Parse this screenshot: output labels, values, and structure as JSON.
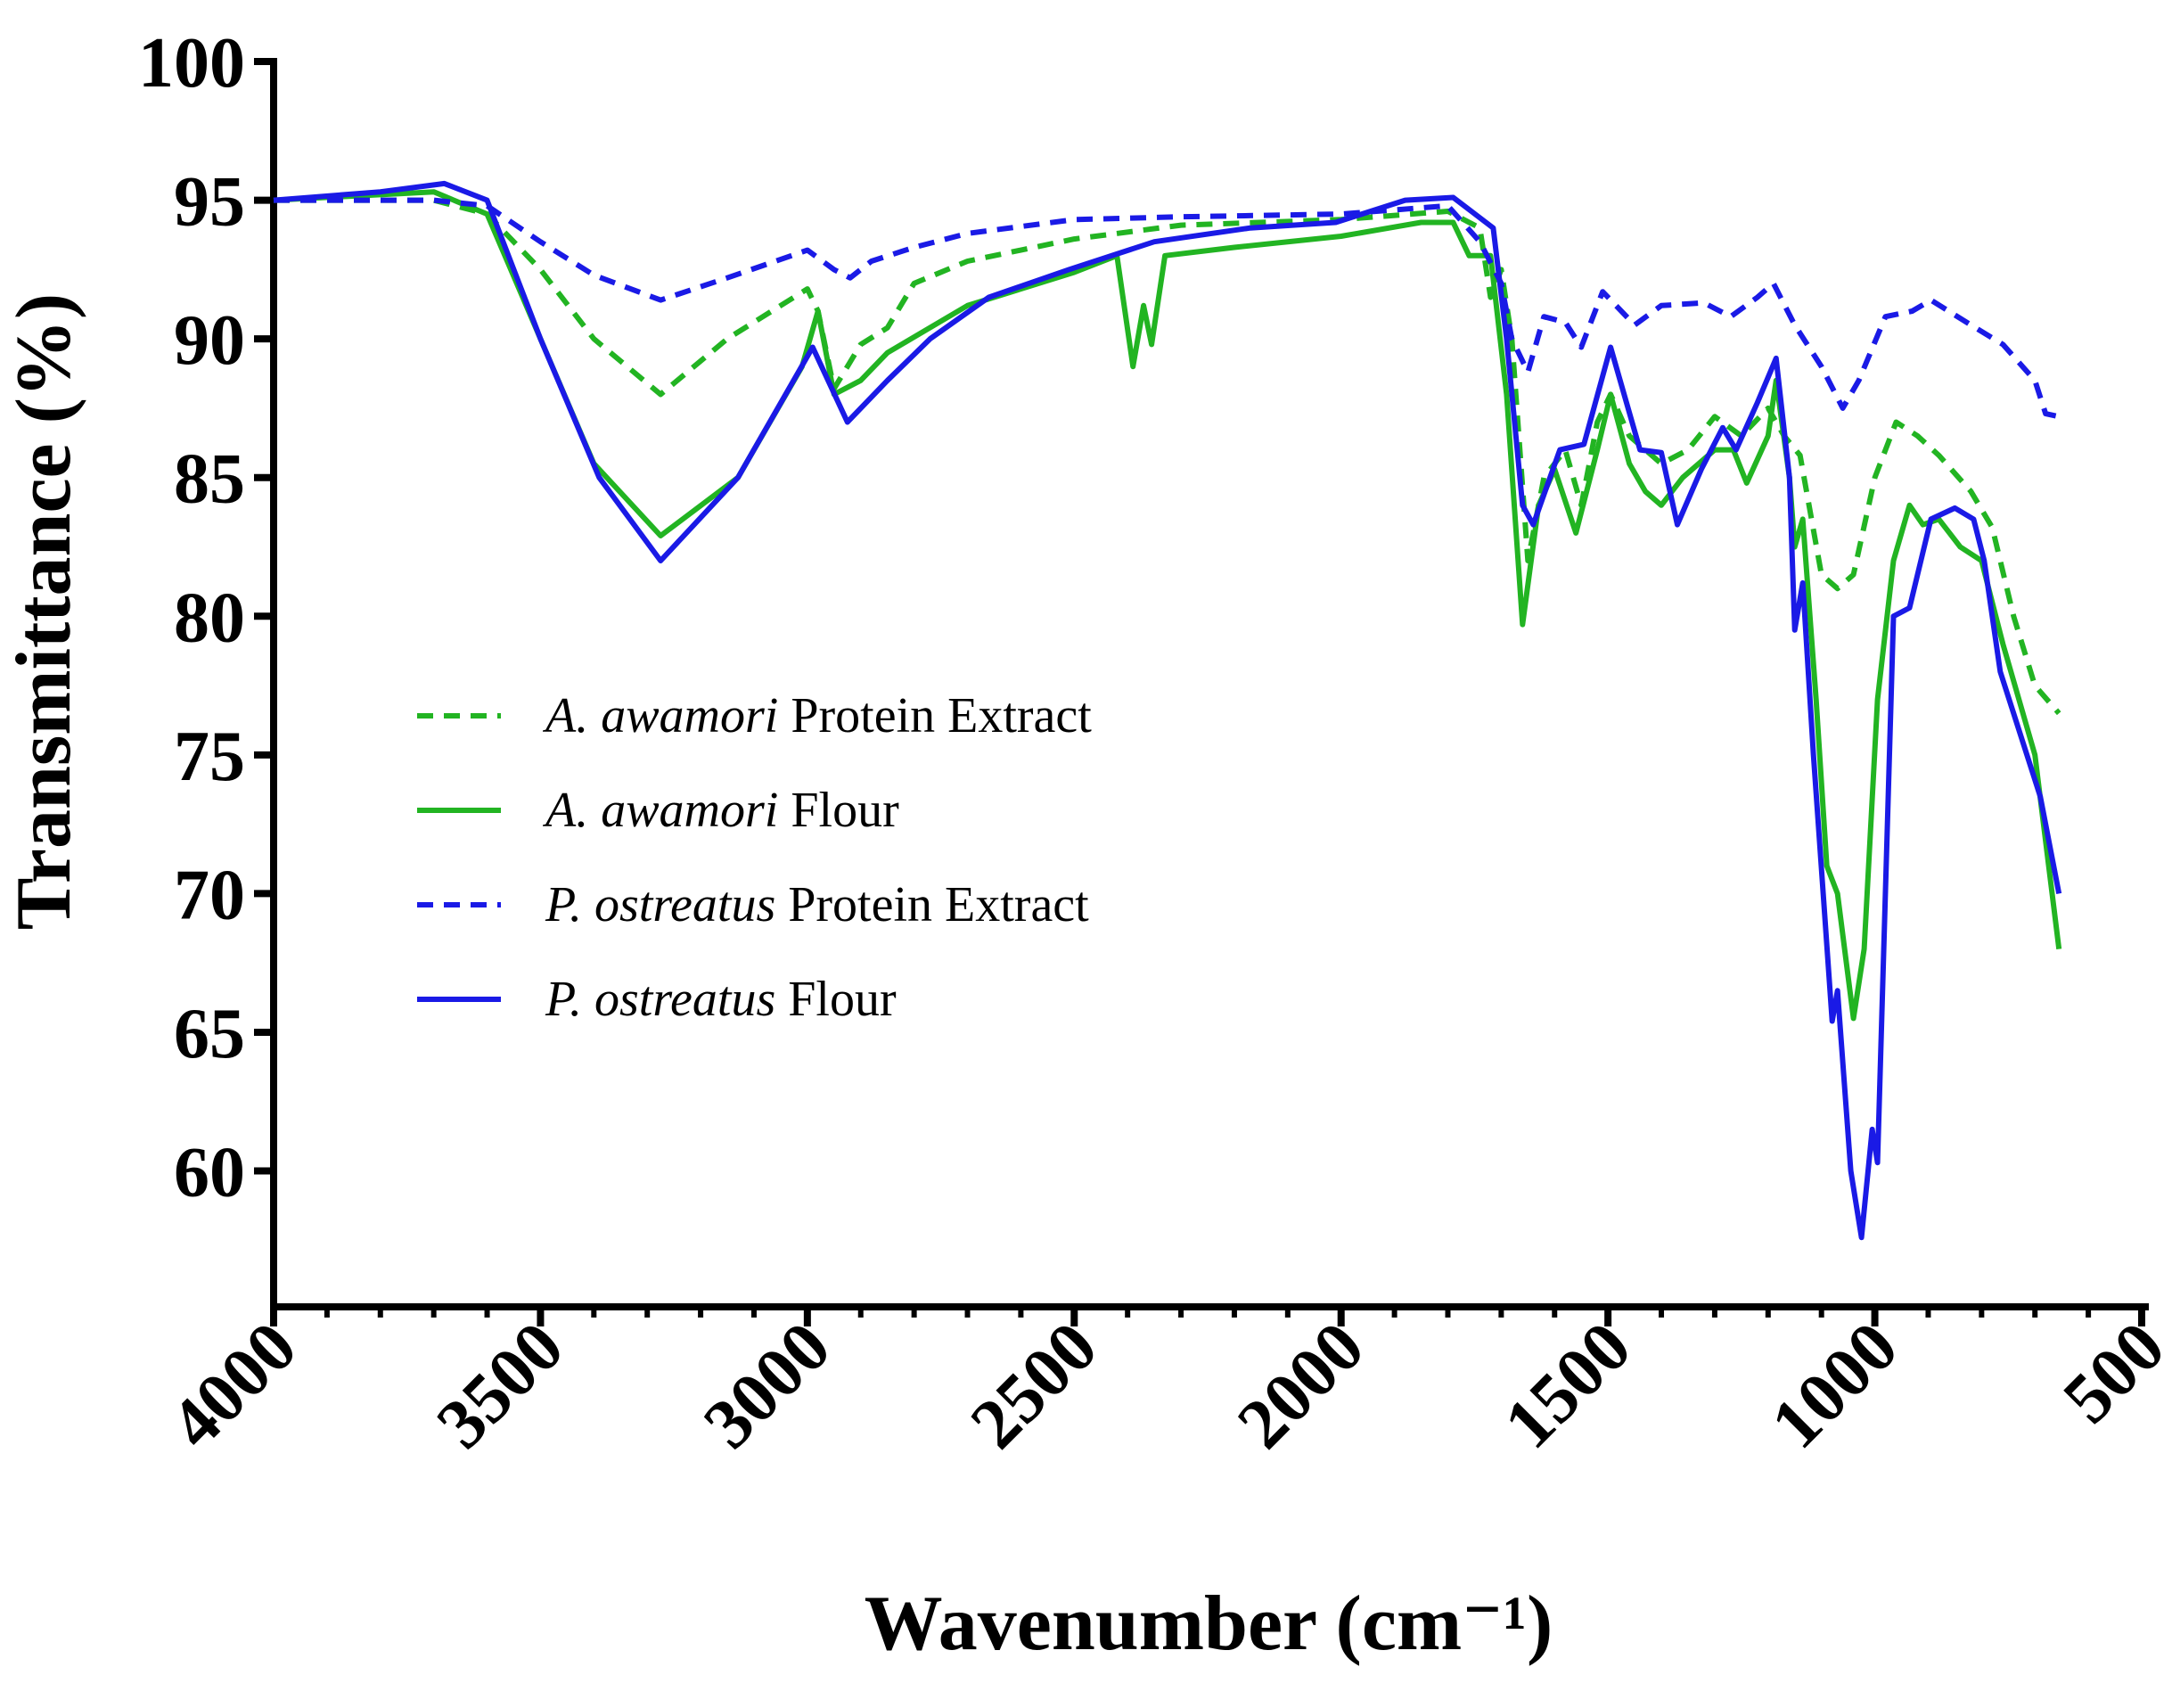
{
  "chart_data": {
    "type": "line",
    "xlabel": "Wavenumber (cm⁻¹)",
    "ylabel": "Transmittance (%)",
    "xlim": [
      4000,
      500
    ],
    "xticks": [
      4000,
      3500,
      3000,
      2500,
      2000,
      1500,
      1000,
      500
    ],
    "xminorticks": [
      4000,
      3900,
      3800,
      3700,
      3600,
      3500,
      3400,
      3300,
      3200,
      3100,
      3000,
      2900,
      2800,
      2700,
      2600,
      2500,
      2400,
      2300,
      2200,
      2100,
      2000,
      1900,
      1800,
      1700,
      1600,
      1500,
      1400,
      1300,
      1200,
      1100,
      1000,
      900,
      800,
      700,
      600,
      500
    ],
    "ylim": [
      55.1,
      100
    ],
    "yticks": [
      60,
      65,
      70,
      75,
      80,
      85,
      90,
      95,
      100
    ],
    "legend": "center-left",
    "series": [
      {
        "name": "A. awamori Protein Extract",
        "color": "#22b422",
        "dash": true,
        "x": [
          4000,
          3700,
          3600,
          3500,
          3400,
          3275,
          3150,
          3000,
          2980,
          2950,
          2900,
          2850,
          2800,
          2700,
          2500,
          2300,
          2000,
          1800,
          1740,
          1720,
          1700,
          1680,
          1650,
          1620,
          1580,
          1550,
          1520,
          1495,
          1460,
          1400,
          1350,
          1300,
          1250,
          1200,
          1170,
          1140,
          1100,
          1070,
          1040,
          1000,
          960,
          920,
          880,
          820,
          780,
          740,
          700,
          655
        ],
        "values": [
          95,
          95,
          94.5,
          92.5,
          90,
          88,
          90,
          91.8,
          91,
          88.2,
          89.8,
          90.4,
          92,
          92.8,
          93.6,
          94.1,
          94.3,
          94.6,
          94,
          91.5,
          92.5,
          90,
          82,
          85,
          86,
          84,
          87,
          88,
          86.5,
          85.5,
          86,
          87.2,
          86.5,
          87.5,
          86.5,
          85.8,
          81.5,
          81,
          81.5,
          85,
          87,
          86.5,
          85.8,
          84.5,
          83.2,
          80,
          77.5,
          76.5
        ]
      },
      {
        "name": "A. awamori Flour",
        "color": "#22b422",
        "dash": false,
        "x": [
          4000,
          3700,
          3600,
          3500,
          3400,
          3275,
          3130,
          3010,
          2980,
          2950,
          2900,
          2850,
          2700,
          2500,
          2420,
          2390,
          2370,
          2355,
          2330,
          2200,
          2000,
          1850,
          1790,
          1760,
          1720,
          1690,
          1660,
          1630,
          1600,
          1560,
          1520,
          1495,
          1460,
          1430,
          1400,
          1360,
          1300,
          1265,
          1240,
          1200,
          1185,
          1160,
          1150,
          1135,
          1110,
          1090,
          1070,
          1040,
          1020,
          995,
          965,
          935,
          910,
          880,
          840,
          800,
          760,
          700,
          655
        ],
        "values": [
          95,
          95.3,
          94.5,
          90,
          85.5,
          82.9,
          85,
          89,
          91,
          88,
          88.5,
          89.5,
          91.2,
          92.4,
          93,
          89,
          91.2,
          89.8,
          93,
          93.3,
          93.7,
          94.2,
          94.2,
          93,
          93,
          88,
          79.7,
          84,
          85.3,
          83,
          86,
          88,
          85.5,
          84.5,
          84,
          85,
          86,
          86,
          84.8,
          86.5,
          88.5,
          85,
          82.5,
          83.5,
          77,
          71,
          70,
          65.5,
          68,
          77,
          82,
          84,
          83.3,
          83.5,
          82.5,
          82,
          79,
          75,
          68
        ]
      },
      {
        "name": "P. ostreatus Protein Extract",
        "color": "#1a1ae6",
        "dash": true,
        "x": [
          4000,
          3700,
          3600,
          3500,
          3400,
          3275,
          3150,
          3000,
          2950,
          2920,
          2880,
          2800,
          2700,
          2500,
          2300,
          2000,
          1800,
          1740,
          1700,
          1680,
          1650,
          1620,
          1580,
          1550,
          1510,
          1450,
          1400,
          1320,
          1270,
          1220,
          1190,
          1150,
          1100,
          1060,
          1030,
          980,
          930,
          895,
          820,
          760,
          700,
          680,
          655
        ],
        "values": [
          95,
          95,
          94.8,
          93.5,
          92.3,
          91.4,
          92.2,
          93.2,
          92.5,
          92.2,
          92.8,
          93.3,
          93.8,
          94.3,
          94.4,
          94.5,
          94.8,
          93.5,
          92,
          90,
          88.8,
          90.8,
          90.6,
          89.7,
          91.7,
          90.5,
          91.2,
          91.3,
          90.8,
          91.5,
          92,
          90.5,
          89,
          87.5,
          88.5,
          90.8,
          91,
          91.4,
          90.5,
          89.8,
          88.5,
          87.3,
          87.2
        ]
      },
      {
        "name": "P. ostreatus Flour",
        "color": "#1a1ae6",
        "dash": false,
        "x": [
          4000,
          3800,
          3680,
          3600,
          3500,
          3390,
          3275,
          3130,
          2990,
          2925,
          2850,
          2770,
          2660,
          2510,
          2350,
          2170,
          2010,
          1880,
          1790,
          1715,
          1690,
          1660,
          1640,
          1590,
          1545,
          1495,
          1440,
          1400,
          1370,
          1325,
          1285,
          1260,
          1220,
          1185,
          1160,
          1150,
          1135,
          1115,
          1080,
          1070,
          1045,
          1025,
          1005,
          995,
          965,
          935,
          895,
          850,
          815,
          795,
          765,
          690,
          655
        ],
        "values": [
          95,
          95.3,
          95.6,
          95,
          90,
          85,
          82,
          85,
          89.7,
          87,
          88.5,
          90,
          91.5,
          92.5,
          93.5,
          94,
          94.2,
          95,
          95.1,
          94,
          90,
          84,
          83.3,
          86,
          86.2,
          89.7,
          86,
          85.9,
          83.3,
          85.3,
          86.8,
          86,
          87.7,
          89.3,
          85,
          79.5,
          81.2,
          75,
          65.4,
          66.5,
          60,
          57.6,
          61.5,
          60.3,
          80,
          80.3,
          83.5,
          83.9,
          83.5,
          82,
          78,
          73.5,
          70
        ]
      }
    ]
  }
}
